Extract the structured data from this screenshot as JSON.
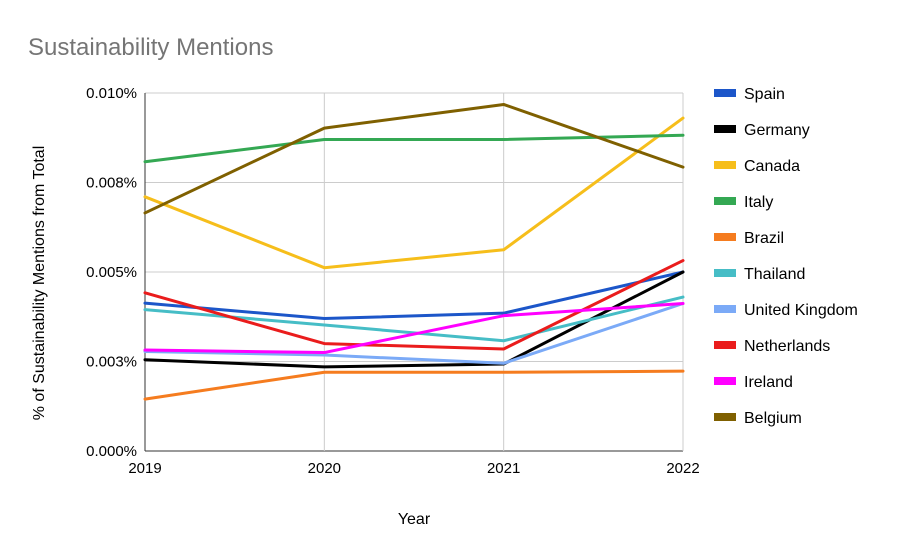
{
  "chart_data": {
    "type": "line",
    "title": "Sustainability Mentions",
    "xlabel": "Year",
    "ylabel": "% of Sustainability Mentions from Total",
    "categories": [
      "2019",
      "2020",
      "2021",
      "2022"
    ],
    "ylim": [
      0,
      0.01
    ],
    "yticks": [
      0,
      0.0025,
      0.005,
      0.0075,
      0.01
    ],
    "ytick_labels": [
      "0.000%",
      "0.003%",
      "0.005%",
      "0.008%",
      "0.010%"
    ],
    "grid": true,
    "legend_position": "right",
    "series": [
      {
        "name": "Spain",
        "color": "#1c56c9",
        "values": [
          0.00413,
          0.0037,
          0.00385,
          0.005
        ]
      },
      {
        "name": "Germany",
        "color": "#000000",
        "values": [
          0.00255,
          0.00235,
          0.00243,
          0.005
        ]
      },
      {
        "name": "Canada",
        "color": "#f6be1b",
        "values": [
          0.0071,
          0.00512,
          0.00562,
          0.0093
        ]
      },
      {
        "name": "Italy",
        "color": "#34a853",
        "values": [
          0.00808,
          0.0087,
          0.0087,
          0.00882
        ]
      },
      {
        "name": "Brazil",
        "color": "#f57c1f",
        "values": [
          0.00145,
          0.0022,
          0.0022,
          0.00223
        ]
      },
      {
        "name": "Thailand",
        "color": "#46bdc6",
        "values": [
          0.00395,
          0.00352,
          0.00308,
          0.0043
        ]
      },
      {
        "name": "United Kingdom",
        "color": "#7baaf7",
        "values": [
          0.00278,
          0.00268,
          0.00245,
          0.00412
        ]
      },
      {
        "name": "Netherlands",
        "color": "#ea1c1c",
        "values": [
          0.00442,
          0.003,
          0.00285,
          0.00532
        ]
      },
      {
        "name": "Ireland",
        "color": "#ff00ff",
        "values": [
          0.00282,
          0.00275,
          0.00378,
          0.00412
        ]
      },
      {
        "name": "Belgium",
        "color": "#7f6000",
        "values": [
          0.00665,
          0.00902,
          0.00968,
          0.00793
        ]
      }
    ]
  }
}
